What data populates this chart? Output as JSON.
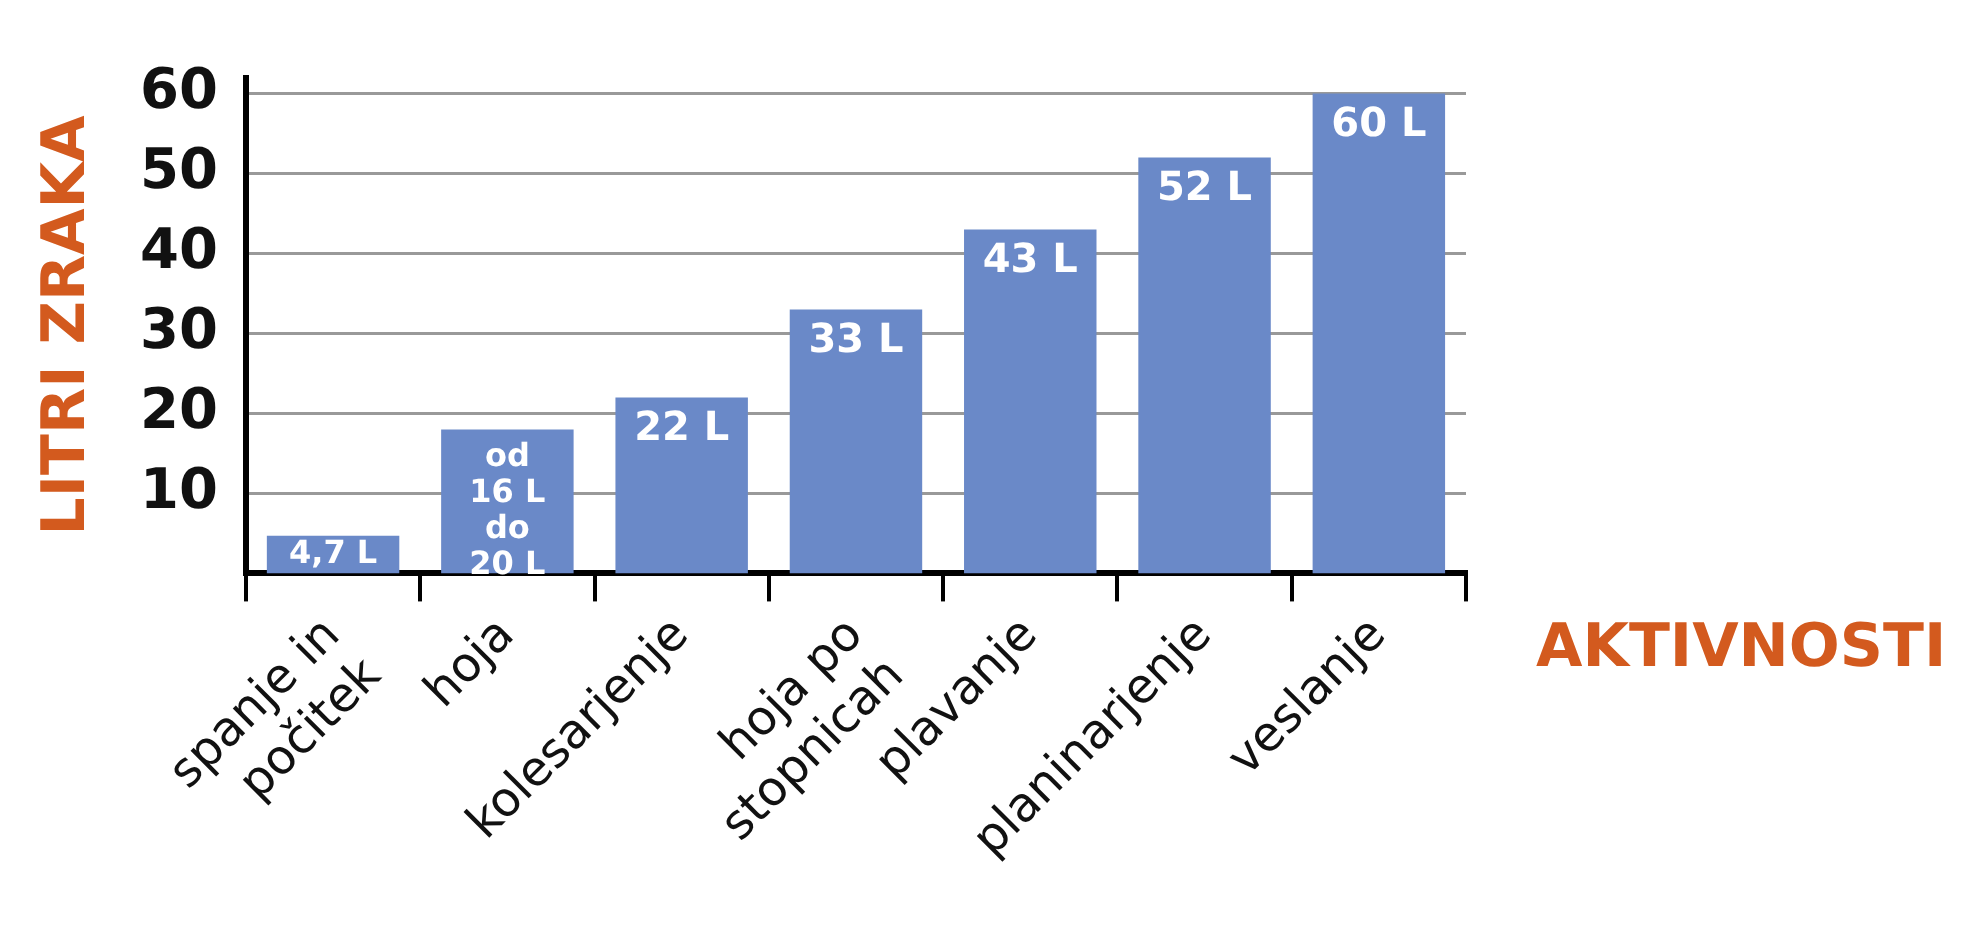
{
  "chart_data": {
    "type": "bar",
    "ylabel": "LITRI ZRAKA",
    "xlabel": "AKTIVNOSTI",
    "categories": [
      "spanje in\npočitek",
      "hoja",
      "kolesarjenje",
      "hoja po\nstopnicah",
      "plavanje",
      "planinarjenje",
      "veslanje"
    ],
    "values": [
      4.7,
      18,
      22,
      33,
      43,
      52,
      60
    ],
    "value_labels": [
      "4,7 L",
      "od\n16 L\ndo\n20 L",
      "22 L",
      "33 L",
      "43 L",
      "52 L",
      "60 L"
    ],
    "color": "#6a89c8",
    "ylim": [
      0,
      62
    ],
    "yticks": [
      10,
      20,
      30,
      40,
      50,
      60
    ],
    "grid": "y",
    "legend": false
  }
}
